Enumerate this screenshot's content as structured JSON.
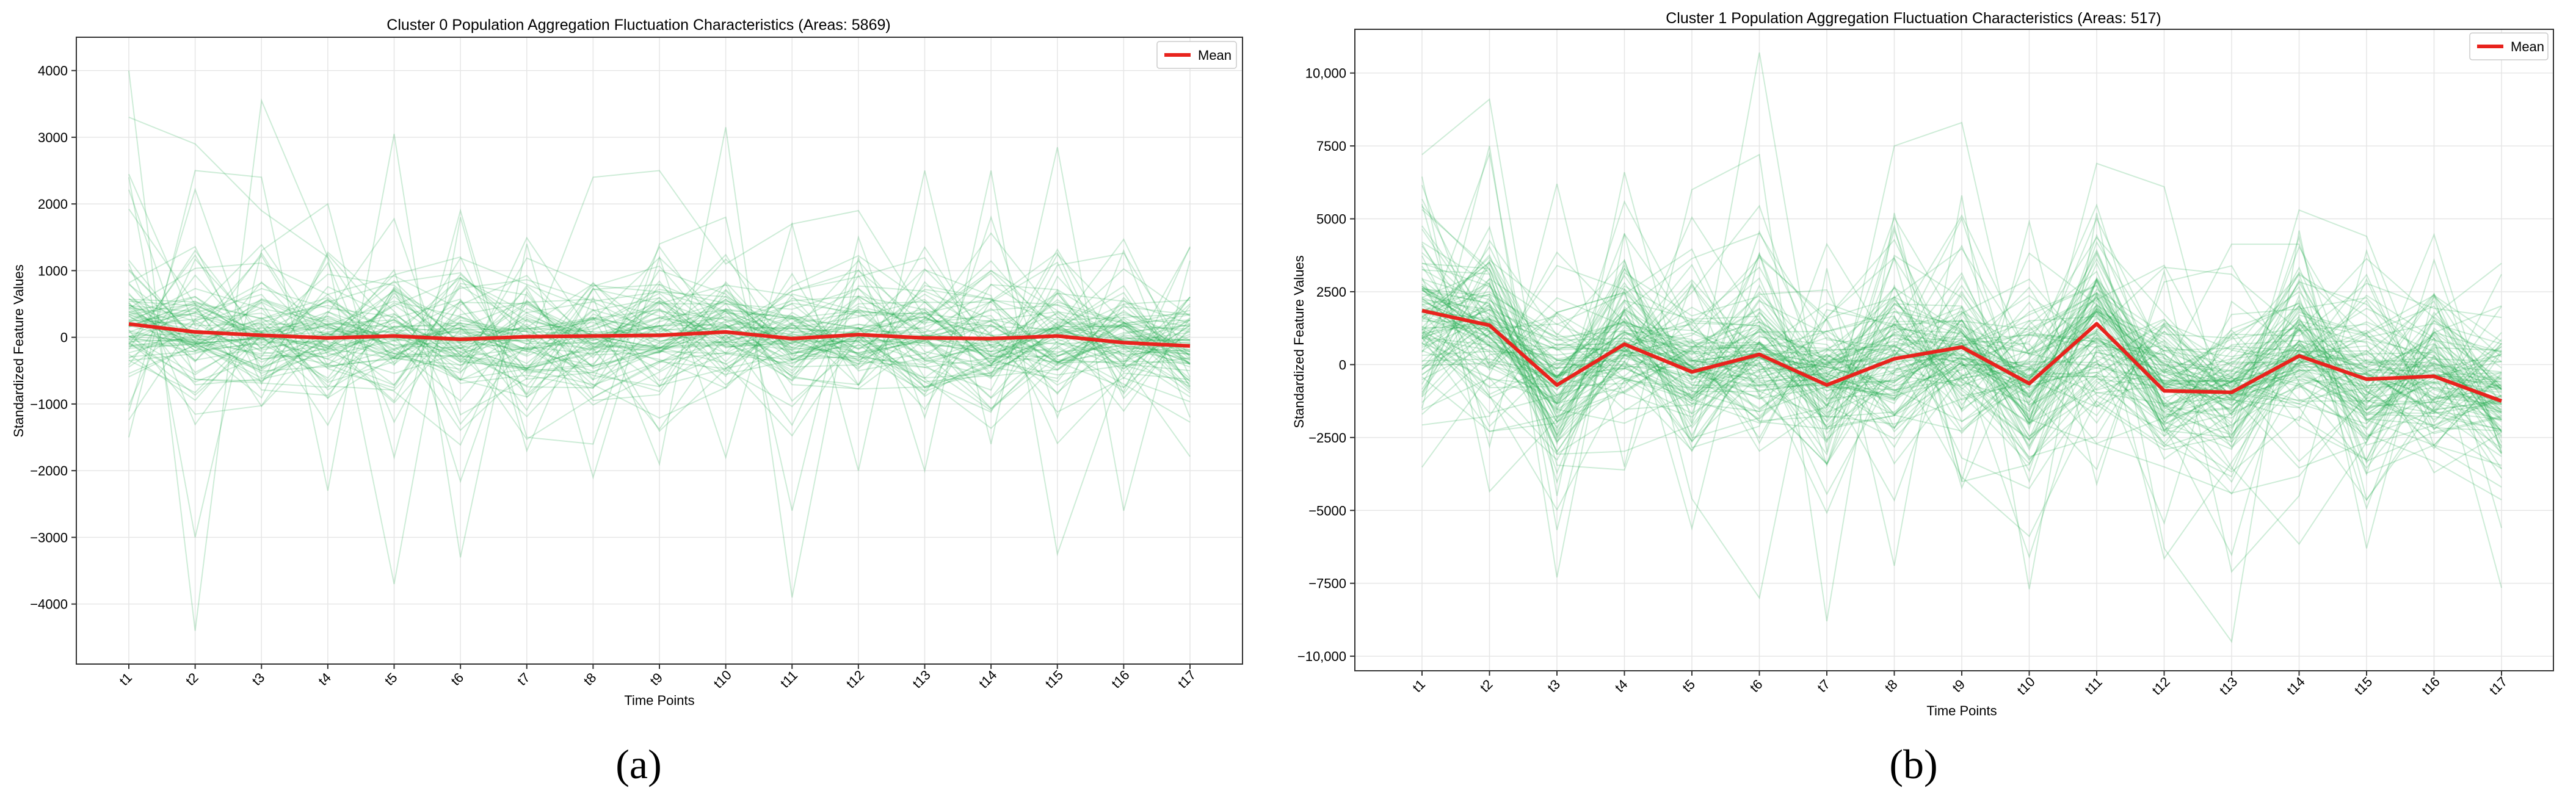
{
  "chart_data": [
    {
      "type": "line",
      "title": "Cluster 0 Population Aggregation Fluctuation Characteristics (Areas: 5869)",
      "xlabel": "Time Points",
      "ylabel": "Standardized Feature Values",
      "categories": [
        "t1",
        "t2",
        "t3",
        "t4",
        "t5",
        "t6",
        "t7",
        "t8",
        "t9",
        "t10",
        "t11",
        "t12",
        "t13",
        "t14",
        "t15",
        "t16",
        "t17"
      ],
      "ylim": [
        -4900,
        4500
      ],
      "yticks": [
        -4000,
        -3000,
        -2000,
        -1000,
        0,
        1000,
        2000,
        3000,
        4000
      ],
      "ytick_labels": [
        "−4000",
        "−3000",
        "−2000",
        "−1000",
        "0",
        "1000",
        "2000",
        "3000",
        "4000"
      ],
      "grid": true,
      "legend": {
        "label": "Mean",
        "placement": "top-right"
      },
      "mean": [
        200,
        80,
        30,
        -10,
        20,
        -30,
        10,
        20,
        30,
        80,
        -20,
        40,
        -10,
        -20,
        20,
        -80,
        -130
      ],
      "series_color": "#1aa84a",
      "mean_color": "#e8231d",
      "sample_count": 80,
      "sample_spread": 480,
      "seed": 11,
      "extreme_traces": [
        [
          3300,
          2900,
          1900,
          1200,
          -400,
          300,
          -200,
          2400,
          2500,
          1100,
          1700,
          1900,
          300,
          1000,
          400,
          -400,
          -500
        ],
        [
          4000,
          -4400,
          3550,
          1200,
          -3700,
          1800,
          -1700,
          600,
          -1900,
          3150,
          -3900,
          1200,
          -2000,
          2500,
          -3250,
          -400,
          500
        ],
        [
          -1500,
          2500,
          2400,
          -2300,
          3050,
          -3300,
          1400,
          -2100,
          1200,
          -1800,
          1700,
          -2000,
          2500,
          -1600,
          2850,
          -2600,
          1150
        ],
        [
          2400,
          -3000,
          1300,
          2000,
          -1800,
          1900,
          -1500,
          -1600,
          1400,
          1800,
          -2600,
          1500,
          -1200,
          1800,
          -1200,
          1300,
          -1200
        ]
      ],
      "caption": "(a)"
    },
    {
      "type": "line",
      "title": "Cluster 1 Population Aggregation Fluctuation Characteristics (Areas: 517)",
      "xlabel": "Time Points",
      "ylabel": "Standardized Feature Values",
      "categories": [
        "t1",
        "t2",
        "t3",
        "t4",
        "t5",
        "t6",
        "t7",
        "t8",
        "t9",
        "t10",
        "t11",
        "t12",
        "t13",
        "t14",
        "t15",
        "t16",
        "t17"
      ],
      "ylim": [
        -10500,
        11500
      ],
      "yticks": [
        -10000,
        -7500,
        -5000,
        -2500,
        0,
        2500,
        5000,
        7500,
        10000
      ],
      "ytick_labels": [
        "−10,000",
        "−7500",
        "−5000",
        "−2500",
        "0",
        "2500",
        "5000",
        "7500",
        "10,000"
      ],
      "grid": true,
      "legend": {
        "label": "Mean",
        "placement": "top-right"
      },
      "mean": [
        1850,
        1350,
        -700,
        700,
        -250,
        350,
        -700,
        200,
        600,
        -650,
        1400,
        -900,
        -950,
        300,
        -500,
        -400,
        -1250
      ],
      "series_color": "#1aa84a",
      "mean_color": "#e8231d",
      "sample_count": 110,
      "sample_spread": 1500,
      "seed": 29,
      "extreme_traces": [
        [
          7200,
          9100,
          -4500,
          6600,
          -2000,
          10700,
          -3000,
          7500,
          8300,
          -2000,
          6900,
          6100,
          -2700,
          5300,
          4400,
          -1500,
          1100
        ],
        [
          -1500,
          7500,
          -7300,
          4500,
          -4600,
          -8000,
          3300,
          -6900,
          5800,
          -7700,
          5200,
          -6300,
          -9500,
          4600,
          -6300,
          2400,
          -5600
        ],
        [
          5500,
          -2800,
          6200,
          -3500,
          6000,
          7200,
          -8800,
          5200,
          -4000,
          4900,
          -4100,
          3200,
          -7100,
          -4500,
          3900,
          -2800,
          -4200
        ]
      ],
      "caption": "(b)"
    }
  ]
}
